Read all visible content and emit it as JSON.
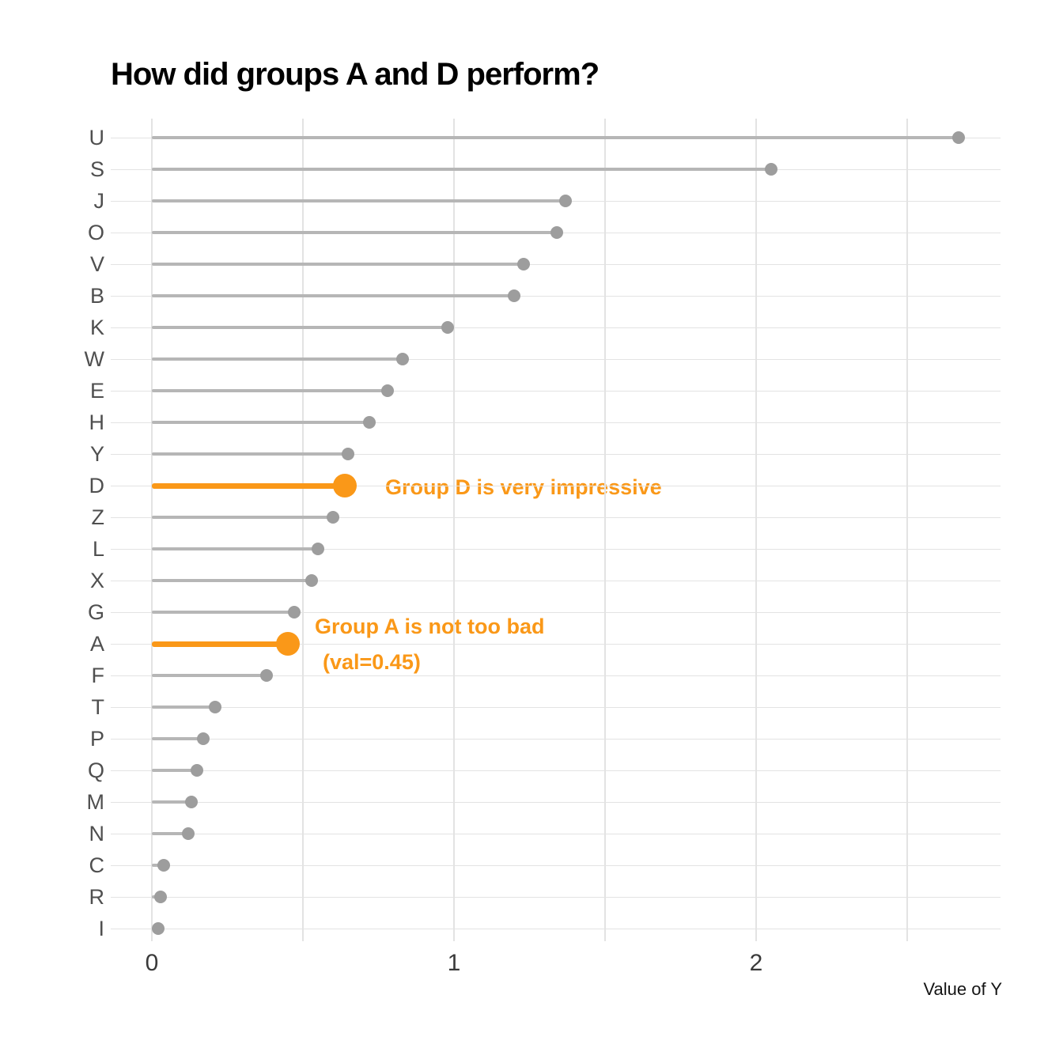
{
  "title": "How did groups A and D perform?",
  "chart_data": {
    "type": "lollipop",
    "orientation": "horizontal",
    "categories": [
      "U",
      "S",
      "J",
      "O",
      "V",
      "B",
      "K",
      "W",
      "E",
      "H",
      "Y",
      "D",
      "Z",
      "L",
      "X",
      "G",
      "A",
      "F",
      "T",
      "P",
      "Q",
      "M",
      "N",
      "C",
      "R",
      "I"
    ],
    "values": [
      2.67,
      2.05,
      1.37,
      1.34,
      1.23,
      1.2,
      0.98,
      0.83,
      0.78,
      0.72,
      0.65,
      0.64,
      0.6,
      0.55,
      0.53,
      0.47,
      0.45,
      0.38,
      0.21,
      0.17,
      0.15,
      0.13,
      0.12,
      0.04,
      0.03,
      0.02
    ],
    "highlighted_categories": [
      "D",
      "A"
    ],
    "title": "How did groups A and D perform?",
    "xlabel": "Value of Y",
    "ylabel": "",
    "xlim": [
      -0.14,
      2.81
    ],
    "x_tick_labels": [
      "0",
      "1",
      "2"
    ],
    "x_tick_values": [
      0,
      1,
      2
    ],
    "x_gridline_values": [
      0,
      0.5,
      1,
      1.5,
      2,
      2.5
    ],
    "grid": "on",
    "legend": "none",
    "annotations": [
      {
        "target": "D",
        "value": 0.64,
        "lines": [
          "Group D is very impressive"
        ]
      },
      {
        "target": "A",
        "value": 0.45,
        "lines": [
          "Group A is not too bad",
          "(val=0.45)"
        ]
      }
    ]
  },
  "annotation_d": {
    "line1": "Group D is very impressive"
  },
  "annotation_a": {
    "line1": "Group A is not too bad",
    "line2": "(val=0.45)"
  },
  "x_axis": {
    "title": "Value of Y"
  },
  "colors": {
    "accent": "#fa9818",
    "stem": "#b6b6b6",
    "dot": "#9d9d9d",
    "grid": "#e3e3e3",
    "category_label": "#4f4f4f",
    "tick_label": "#3a3a3a",
    "axis_title": "#141414",
    "title": "#000000",
    "background": "#ffffff"
  }
}
